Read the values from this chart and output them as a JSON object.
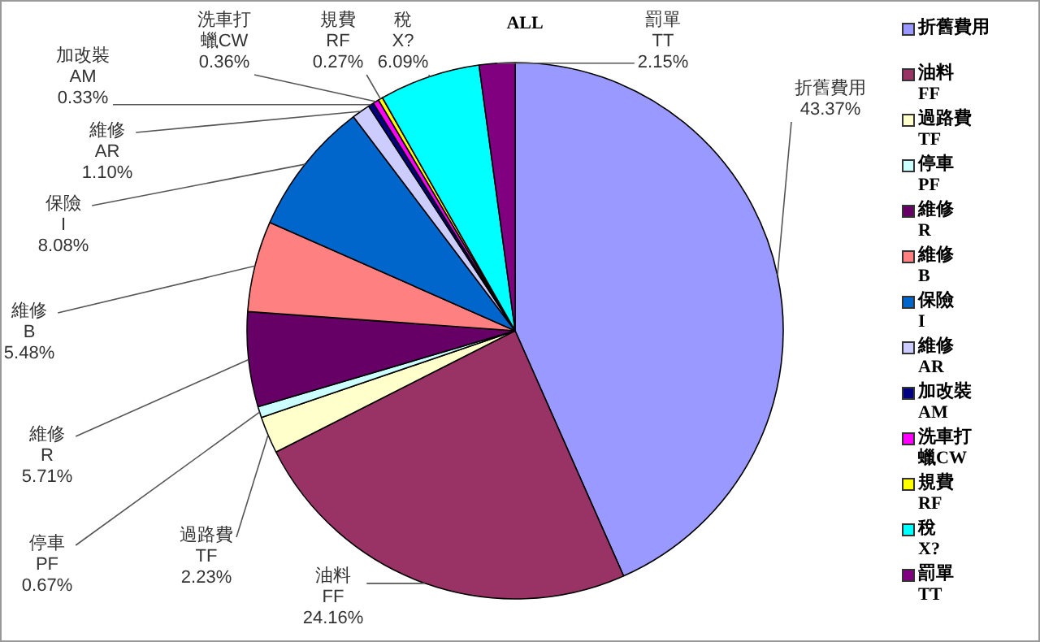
{
  "chart_data": {
    "type": "pie",
    "title": "ALL",
    "categories": [
      "折舊費用",
      "油料\nFF",
      "過路費\nTF",
      "停車\nPF",
      "維修\nR",
      "維修\nB",
      "保險\nI",
      "維修\nAR",
      "加改裝\nAM",
      "洗車打蠟CW",
      "規費\nRF",
      "稅\nX?",
      "罰單\nTT"
    ],
    "values": [
      43.37,
      24.16,
      2.23,
      0.67,
      5.71,
      5.48,
      8.08,
      1.1,
      0.33,
      0.36,
      0.27,
      6.09,
      2.15
    ],
    "value_labels": [
      "43.37%",
      "24.16%",
      "2.23%",
      "0.67%",
      "5.71%",
      "5.48%",
      "8.08%",
      "1.10%",
      "0.33%",
      "0.36%",
      "0.27%",
      "6.09%",
      "2.15%"
    ],
    "colors": [
      "#9999ff",
      "#993366",
      "#ffffcc",
      "#ccffff",
      "#660066",
      "#ff8080",
      "#0066cc",
      "#ccccff",
      "#000080",
      "#ff00ff",
      "#ffff00",
      "#00ffff",
      "#800080"
    ],
    "legend": "right"
  }
}
